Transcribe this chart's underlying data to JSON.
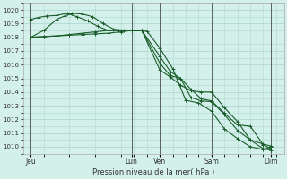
{
  "title": "Pression niveau de la mer( hPa )",
  "bg_color": "#d4f0eb",
  "grid_color": "#b0d8d0",
  "line_color": "#1a5c2a",
  "vline_color": "#444444",
  "ylim": [
    1009.5,
    1020.5
  ],
  "yticks": [
    1010,
    1011,
    1012,
    1013,
    1014,
    1015,
    1016,
    1017,
    1018,
    1019,
    1020
  ],
  "xlim": [
    -0.3,
    9.8
  ],
  "day_labels": [
    "Jeu",
    "Lun",
    "Ven",
    "Sam",
    "Dim"
  ],
  "day_positions": [
    0.0,
    3.9,
    5.0,
    7.0,
    9.3
  ],
  "vline_positions": [
    0.0,
    3.9,
    5.0,
    7.0,
    9.3
  ],
  "series": [
    {
      "x": [
        0.0,
        0.5,
        1.0,
        1.5,
        2.0,
        2.5,
        3.0,
        3.5,
        3.9,
        4.5,
        5.0,
        5.5,
        6.0,
        6.5,
        7.0,
        7.5,
        8.0,
        8.5,
        9.0,
        9.3
      ],
      "y": [
        1018.0,
        1018.05,
        1018.1,
        1018.15,
        1018.2,
        1018.25,
        1018.3,
        1018.4,
        1018.5,
        1018.45,
        1017.2,
        1015.7,
        1013.4,
        1013.2,
        1012.6,
        1011.3,
        1010.6,
        1010.0,
        1009.8,
        1010.0
      ]
    },
    {
      "x": [
        0.0,
        0.3,
        0.6,
        1.0,
        1.4,
        1.8,
        2.2,
        2.6,
        3.0,
        3.4,
        3.9,
        4.3,
        5.0,
        5.4,
        5.8,
        6.2,
        6.6,
        7.0,
        7.5,
        8.0,
        8.5,
        9.0,
        9.3
      ],
      "y": [
        1019.3,
        1019.45,
        1019.55,
        1019.6,
        1019.75,
        1019.5,
        1019.2,
        1018.8,
        1018.5,
        1018.5,
        1018.5,
        1018.5,
        1016.6,
        1015.5,
        1015.0,
        1013.6,
        1013.35,
        1013.3,
        1012.35,
        1011.2,
        1010.5,
        1010.2,
        1010.05
      ]
    },
    {
      "x": [
        0.0,
        0.5,
        1.0,
        1.3,
        1.6,
        2.0,
        2.4,
        2.8,
        3.2,
        3.6,
        3.9,
        4.3,
        5.0,
        5.4,
        5.8,
        6.2,
        6.6,
        7.0,
        7.5,
        8.0,
        8.5,
        9.0,
        9.3
      ],
      "y": [
        1018.0,
        1018.5,
        1019.3,
        1019.55,
        1019.75,
        1019.7,
        1019.5,
        1019.0,
        1018.6,
        1018.5,
        1018.5,
        1018.5,
        1016.1,
        1015.2,
        1015.0,
        1014.2,
        1013.5,
        1013.35,
        1012.45,
        1011.6,
        1011.5,
        1010.15,
        1009.85
      ]
    },
    {
      "x": [
        0.0,
        0.5,
        1.0,
        1.5,
        2.0,
        2.5,
        3.0,
        3.5,
        3.9,
        4.3,
        5.0,
        5.4,
        5.8,
        6.2,
        6.6,
        7.0,
        7.5,
        8.0,
        8.5,
        9.0,
        9.3
      ],
      "y": [
        1018.0,
        1018.05,
        1018.1,
        1018.2,
        1018.3,
        1018.4,
        1018.5,
        1018.5,
        1018.5,
        1018.5,
        1015.6,
        1015.1,
        1014.5,
        1014.1,
        1014.0,
        1014.0,
        1012.85,
        1011.85,
        1010.5,
        1009.85,
        1009.75
      ]
    }
  ]
}
